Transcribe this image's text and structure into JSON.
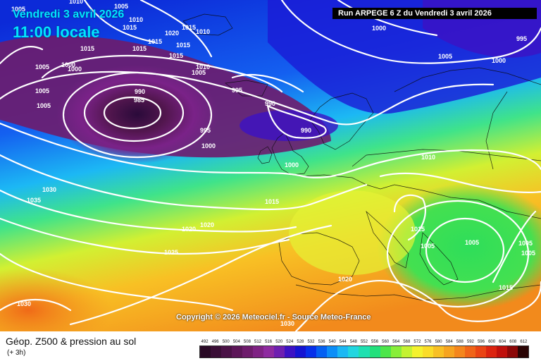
{
  "header": {
    "date": "Vendredi 3 avril 2026",
    "time": "11:00 locale",
    "run": "Run ARPEGE 6 Z du Vendredi 3 avril 2026"
  },
  "copyright": "Copyright © 2026 Meteociel.fr - Source Meteo-France",
  "legend": {
    "title": "Géop. Z500 & pression au sol",
    "subtitle": "(+ 3h)",
    "scale": [
      {
        "label": "492",
        "color": "#2a0a26"
      },
      {
        "label": "496",
        "color": "#3a0e36"
      },
      {
        "label": "500",
        "color": "#4a1246"
      },
      {
        "label": "504",
        "color": "#5c1658"
      },
      {
        "label": "508",
        "color": "#6e1c6c"
      },
      {
        "label": "512",
        "color": "#7f2284"
      },
      {
        "label": "516",
        "color": "#8e2aa0"
      },
      {
        "label": "520",
        "color": "#6e1fb0"
      },
      {
        "label": "524",
        "color": "#3c12c4"
      },
      {
        "label": "528",
        "color": "#1414d2"
      },
      {
        "label": "532",
        "color": "#0630ea"
      },
      {
        "label": "536",
        "color": "#0460f2"
      },
      {
        "label": "540",
        "color": "#0c8ef8"
      },
      {
        "label": "544",
        "color": "#1cb8f4"
      },
      {
        "label": "548",
        "color": "#22d6e0"
      },
      {
        "label": "552",
        "color": "#1ee0b0"
      },
      {
        "label": "556",
        "color": "#22e07c"
      },
      {
        "label": "560",
        "color": "#4ce64a"
      },
      {
        "label": "564",
        "color": "#88ee3a"
      },
      {
        "label": "568",
        "color": "#c4f232"
      },
      {
        "label": "572",
        "color": "#f4f22e"
      },
      {
        "label": "576",
        "color": "#fadc28"
      },
      {
        "label": "580",
        "color": "#f8c024"
      },
      {
        "label": "584",
        "color": "#f6a420"
      },
      {
        "label": "588",
        "color": "#f4861c"
      },
      {
        "label": "592",
        "color": "#f06418"
      },
      {
        "label": "596",
        "color": "#ea4414"
      },
      {
        "label": "600",
        "color": "#dc2410"
      },
      {
        "label": "604",
        "color": "#c0100c"
      },
      {
        "label": "608",
        "color": "#8c0808"
      },
      {
        "label": "612",
        "color": "#2a0404"
      }
    ]
  },
  "pressure_labels": [
    "1010",
    "1005",
    "1005",
    "1015",
    "1015",
    "1015",
    "1015",
    "1010",
    "1010",
    "1020",
    "1015",
    "1015",
    "1015",
    "1000",
    "1010",
    "1005",
    "1005",
    "1000",
    "1005",
    "995",
    "990",
    "985",
    "990",
    "990",
    "995",
    "1000",
    "1000",
    "1005",
    "1010",
    "1030",
    "1035",
    "1015",
    "1020",
    "1025",
    "1030",
    "1030",
    "1020",
    "1020",
    "1015",
    "1005",
    "1005",
    "1005",
    "1005",
    "1015",
    "1000",
    "1005",
    "995",
    "1000",
    "995"
  ]
}
